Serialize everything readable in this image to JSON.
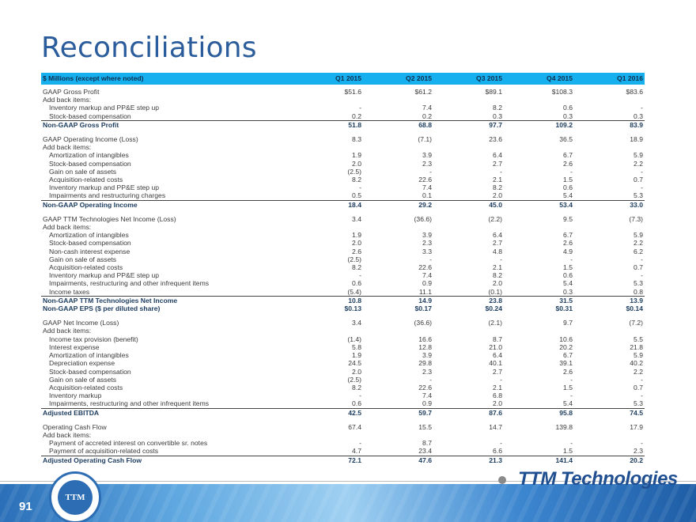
{
  "title": "Reconciliations",
  "page_number": "91",
  "logo_text": "TTM",
  "brand_text": "TTM Technologies",
  "colors": {
    "header_bg": "#17b0ef",
    "title": "#2b5c9b"
  },
  "table": {
    "header": [
      "$ Millions (except where noted)",
      "Q1 2015",
      "Q2 2015",
      "Q3 2015",
      "Q4 2015",
      "Q1 2016"
    ],
    "rows": [
      {
        "label": "GAAP Gross Profit",
        "values": [
          "$51.6",
          "$61.2",
          "$89.1",
          "$108.3",
          "$83.6"
        ]
      },
      {
        "label": "Add back items:",
        "values": [
          "",
          "",
          "",
          "",
          ""
        ]
      },
      {
        "label": "Inventory markup and PP&E step up",
        "values": [
          "-",
          "7.4",
          "8.2",
          "0.6",
          "-"
        ],
        "indent": true
      },
      {
        "label": "Stock-based compensation",
        "values": [
          "0.2",
          "0.2",
          "0.3",
          "0.3",
          "0.3"
        ],
        "indent": true
      },
      {
        "label": "Non-GAAP Gross Profit",
        "values": [
          "51.8",
          "68.8",
          "97.7",
          "109.2",
          "83.9"
        ],
        "bold": true,
        "topline": true
      },
      {
        "label": "GAAP Operating Income (Loss)",
        "values": [
          "8.3",
          "(7.1)",
          "23.6",
          "36.5",
          "18.9"
        ],
        "gap": true
      },
      {
        "label": "Add back items:",
        "values": [
          "",
          "",
          "",
          "",
          ""
        ]
      },
      {
        "label": "Amortization of intangibles",
        "values": [
          "1.9",
          "3.9",
          "6.4",
          "6.7",
          "5.9"
        ],
        "indent": true
      },
      {
        "label": "Stock-based compensation",
        "values": [
          "2.0",
          "2.3",
          "2.7",
          "2.6",
          "2.2"
        ],
        "indent": true
      },
      {
        "label": "Gain on sale of assets",
        "values": [
          "(2.5)",
          "-",
          "-",
          "-",
          "-"
        ],
        "indent": true
      },
      {
        "label": "Acquisition-related costs",
        "values": [
          "8.2",
          "22.6",
          "2.1",
          "1.5",
          "0.7"
        ],
        "indent": true
      },
      {
        "label": "Inventory markup and PP&E step up",
        "values": [
          "-",
          "7.4",
          "8.2",
          "0.6",
          "-"
        ],
        "indent": true
      },
      {
        "label": "Impairments and restructuring charges",
        "values": [
          "0.5",
          "0.1",
          "2.0",
          "5.4",
          "5.3"
        ],
        "indent": true
      },
      {
        "label": "Non-GAAP Operating Income",
        "values": [
          "18.4",
          "29.2",
          "45.0",
          "53.4",
          "33.0"
        ],
        "bold": true,
        "topline": true
      },
      {
        "label": "GAAP TTM Technologies Net Income (Loss)",
        "values": [
          "3.4",
          "(36.6)",
          "(2.2)",
          "9.5",
          "(7.3)"
        ],
        "gap": true
      },
      {
        "label": "Add back items:",
        "values": [
          "",
          "",
          "",
          "",
          ""
        ]
      },
      {
        "label": "Amortization of intangibles",
        "values": [
          "1.9",
          "3.9",
          "6.4",
          "6.7",
          "5.9"
        ],
        "indent": true
      },
      {
        "label": "Stock-based compensation",
        "values": [
          "2.0",
          "2.3",
          "2.7",
          "2.6",
          "2.2"
        ],
        "indent": true
      },
      {
        "label": "Non-cash interest expense",
        "values": [
          "2.6",
          "3.3",
          "4.8",
          "4.9",
          "6.2"
        ],
        "indent": true
      },
      {
        "label": "Gain on sale of assets",
        "values": [
          "(2.5)",
          "-",
          "-",
          "-",
          "-"
        ],
        "indent": true
      },
      {
        "label": "Acquisition-related costs",
        "values": [
          "8.2",
          "22.6",
          "2.1",
          "1.5",
          "0.7"
        ],
        "indent": true
      },
      {
        "label": "Inventory markup and PP&E step up",
        "values": [
          "-",
          "7.4",
          "8.2",
          "0.6",
          "-"
        ],
        "indent": true
      },
      {
        "label": "Impairments, restructuring and other infrequent items",
        "values": [
          "0.6",
          "0.9",
          "2.0",
          "5.4",
          "5.3"
        ],
        "indent": true
      },
      {
        "label": "Income taxes",
        "values": [
          "(5.4)",
          "11.1",
          "(0.1)",
          "0.3",
          "0.8"
        ],
        "indent": true
      },
      {
        "label": "Non-GAAP TTM Technologies Net Income",
        "values": [
          "10.8",
          "14.9",
          "23.8",
          "31.5",
          "13.9"
        ],
        "bold": true,
        "topline": true
      },
      {
        "label": "Non-GAAP EPS ($ per diluted share)",
        "values": [
          "$0.13",
          "$0.17",
          "$0.24",
          "$0.31",
          "$0.14"
        ],
        "bold": true
      },
      {
        "label": "GAAP Net Income (Loss)",
        "values": [
          "3.4",
          "(36.6)",
          "(2.1)",
          "9.7",
          "(7.2)"
        ],
        "gap": true
      },
      {
        "label": "Add back items:",
        "values": [
          "",
          "",
          "",
          "",
          ""
        ]
      },
      {
        "label": "Income tax provision (benefit)",
        "values": [
          "(1.4)",
          "16.6",
          "8.7",
          "10.6",
          "5.5"
        ],
        "indent": true
      },
      {
        "label": "Interest expense",
        "values": [
          "5.8",
          "12.8",
          "21.0",
          "20.2",
          "21.8"
        ],
        "indent": true
      },
      {
        "label": "Amortization of intangibles",
        "values": [
          "1.9",
          "3.9",
          "6.4",
          "6.7",
          "5.9"
        ],
        "indent": true
      },
      {
        "label": "Depreciation expense",
        "values": [
          "24.5",
          "29.8",
          "40.1",
          "39.1",
          "40.2"
        ],
        "indent": true
      },
      {
        "label": "Stock-based compensation",
        "values": [
          "2.0",
          "2.3",
          "2.7",
          "2.6",
          "2.2"
        ],
        "indent": true
      },
      {
        "label": "Gain on sale of assets",
        "values": [
          "(2.5)",
          "-",
          "-",
          "-",
          "-"
        ],
        "indent": true
      },
      {
        "label": "Acquisition-related costs",
        "values": [
          "8.2",
          "22.6",
          "2.1",
          "1.5",
          "0.7"
        ],
        "indent": true
      },
      {
        "label": "Inventory markup",
        "values": [
          "-",
          "7.4",
          "6.8",
          "-",
          "-"
        ],
        "indent": true
      },
      {
        "label": "Impairments, restructuring and other infrequent items",
        "values": [
          "0.6",
          "0.9",
          "2.0",
          "5.4",
          "5.3"
        ],
        "indent": true
      },
      {
        "label": "Adjusted EBITDA",
        "values": [
          "42.5",
          "59.7",
          "87.6",
          "95.8",
          "74.5"
        ],
        "bold": true,
        "topline": true
      },
      {
        "label": "Operating Cash Flow",
        "values": [
          "67.4",
          "15.5",
          "14.7",
          "139.8",
          "17.9"
        ],
        "gap": true
      },
      {
        "label": "Add back items:",
        "values": [
          "",
          "",
          "",
          "",
          ""
        ]
      },
      {
        "label": "Payment of accreted interest on convertible sr. notes",
        "values": [
          "-",
          "8.7",
          "-",
          "-",
          "-"
        ],
        "indent": true
      },
      {
        "label": "Payment of acquisition-related costs",
        "values": [
          "4.7",
          "23.4",
          "6.6",
          "1.5",
          "2.3"
        ],
        "indent": true
      },
      {
        "label": "Adjusted Operating Cash Flow",
        "values": [
          "72.1",
          "47.6",
          "21.3",
          "141.4",
          "20.2"
        ],
        "bold": true,
        "topline": true
      }
    ]
  }
}
